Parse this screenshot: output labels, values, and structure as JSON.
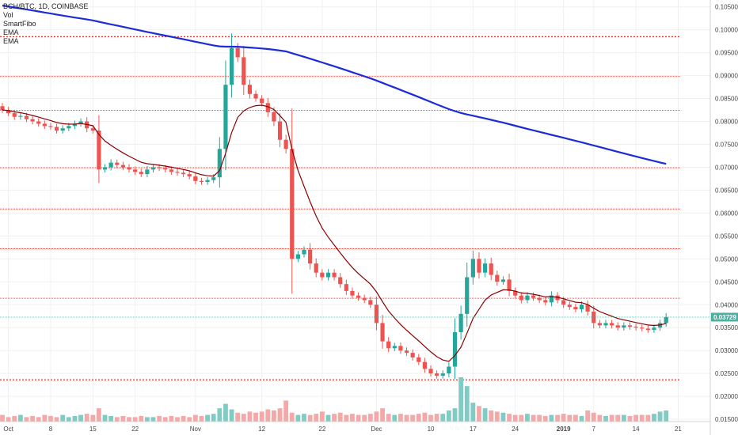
{
  "legend": {
    "symbol": "BCH/BTC, 1D, COINBASE",
    "vol": "Vol",
    "smartfibo": "SmartFibo",
    "ema1": "EMA",
    "ema2": "EMA"
  },
  "price_badge": "0.03729",
  "colors": {
    "up": "#26a69a",
    "down": "#ef5350",
    "vol_up": "#80cbc4",
    "vol_down": "#f4a8a8",
    "ema_slow": "#1b2bd8",
    "ema_fast": "#8b0000",
    "fibo": "#e0302a",
    "last_price": "#4caf9f"
  },
  "chart_data": {
    "type": "candlestick",
    "title": "BCH/BTC, 1D, COINBASE",
    "ylim": [
      0.0145,
      0.1065
    ],
    "y_ticks": [
      "0.01500",
      "0.02000",
      "0.02500",
      "0.03000",
      "0.03500",
      "0.04000",
      "0.04500",
      "0.05000",
      "0.05500",
      "0.06000",
      "0.06500",
      "0.07000",
      "0.07500",
      "0.08000",
      "0.08500",
      "0.09000",
      "0.09500",
      "0.10000",
      "0.10500"
    ],
    "x_ticks": [
      {
        "label": "Oct",
        "day": 1
      },
      {
        "label": "8",
        "day": 8
      },
      {
        "label": "15",
        "day": 15
      },
      {
        "label": "22",
        "day": 22
      },
      {
        "label": "Nov",
        "day": 32
      },
      {
        "label": "12",
        "day": 43
      },
      {
        "label": "22",
        "day": 53
      },
      {
        "label": "Dec",
        "day": 62
      },
      {
        "label": "10",
        "day": 71
      },
      {
        "label": "17",
        "day": 78
      },
      {
        "label": "24",
        "day": 85
      },
      {
        "label": "2019",
        "day": 93
      },
      {
        "label": "7",
        "day": 98
      },
      {
        "label": "14",
        "day": 105
      },
      {
        "label": "21",
        "day": 112
      }
    ],
    "fibo_levels": [
      0.0985,
      0.0898,
      0.0824,
      0.0699,
      0.0609,
      0.0522,
      0.0414,
      0.0236
    ],
    "last_price": 0.03729,
    "close": [
      0.0825,
      0.0818,
      0.081,
      0.0812,
      0.0805,
      0.08,
      0.0795,
      0.079,
      0.0788,
      0.078,
      0.0785,
      0.079,
      0.0795,
      0.08,
      0.0785,
      0.078,
      0.0695,
      0.07,
      0.071,
      0.0705,
      0.07,
      0.0695,
      0.069,
      0.0685,
      0.0695,
      0.07,
      0.0698,
      0.0695,
      0.069,
      0.0688,
      0.0685,
      0.068,
      0.067,
      0.0668,
      0.0672,
      0.0678,
      0.074,
      0.088,
      0.096,
      0.094,
      0.088,
      0.086,
      0.085,
      0.084,
      0.082,
      0.08,
      0.076,
      0.074,
      0.05,
      0.051,
      0.052,
      0.049,
      0.047,
      0.046,
      0.047,
      0.046,
      0.0445,
      0.043,
      0.042,
      0.0415,
      0.041,
      0.04,
      0.036,
      0.032,
      0.0305,
      0.031,
      0.03,
      0.0295,
      0.0285,
      0.0275,
      0.026,
      0.025,
      0.0245,
      0.025,
      0.0265,
      0.034,
      0.038,
      0.046,
      0.05,
      0.047,
      0.049,
      0.0465,
      0.045,
      0.0455,
      0.043,
      0.042,
      0.041,
      0.042,
      0.0415,
      0.041,
      0.0405,
      0.042,
      0.041,
      0.04,
      0.0395,
      0.039,
      0.04,
      0.0385,
      0.036,
      0.0355,
      0.036,
      0.0355,
      0.035,
      0.0355,
      0.0352,
      0.035,
      0.0348,
      0.0345,
      0.035,
      0.036,
      0.0373
    ],
    "volume_relative": [
      0.3,
      0.2,
      0.25,
      0.3,
      0.2,
      0.25,
      0.2,
      0.3,
      0.25,
      0.2,
      0.3,
      0.2,
      0.25,
      0.3,
      0.35,
      0.3,
      0.6,
      0.3,
      0.25,
      0.2,
      0.25,
      0.2,
      0.2,
      0.25,
      0.2,
      0.2,
      0.25,
      0.2,
      0.25,
      0.2,
      0.25,
      0.2,
      0.3,
      0.25,
      0.3,
      0.35,
      0.6,
      0.8,
      0.55,
      0.4,
      0.35,
      0.45,
      0.4,
      0.45,
      0.55,
      0.5,
      0.6,
      0.95,
      0.4,
      0.3,
      0.35,
      0.3,
      0.35,
      0.45,
      0.3,
      0.35,
      0.4,
      0.3,
      0.35,
      0.3,
      0.3,
      0.35,
      0.45,
      0.6,
      0.35,
      0.3,
      0.35,
      0.3,
      0.3,
      0.35,
      0.4,
      0.3,
      0.35,
      0.35,
      0.5,
      0.6,
      2.0,
      1.6,
      0.85,
      0.7,
      0.6,
      0.5,
      0.45,
      0.4,
      0.35,
      0.3,
      0.3,
      0.35,
      0.3,
      0.3,
      0.25,
      0.3,
      0.3,
      0.35,
      0.3,
      0.3,
      0.25,
      0.5,
      0.4,
      0.3,
      0.25,
      0.3,
      0.3,
      0.3,
      0.25,
      0.3,
      0.3,
      0.3,
      0.35,
      0.45,
      0.5
    ]
  }
}
